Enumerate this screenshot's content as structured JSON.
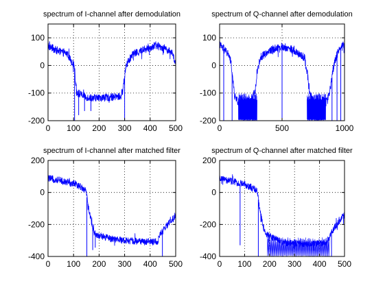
{
  "figure": {
    "background": "#ffffff",
    "line_color": "#0000ff",
    "grid_color": "#000000"
  },
  "chart_data": [
    {
      "type": "line",
      "title": "spectrum  of I-channel after  demodulation",
      "xlabel": "",
      "ylabel": "",
      "xlim": [
        0,
        500
      ],
      "ylim": [
        -200,
        150
      ],
      "xticks": [
        0,
        100,
        200,
        300,
        400,
        500
      ],
      "yticks": [
        -200,
        -100,
        0,
        100
      ],
      "grid": true,
      "series": [
        {
          "color": "#0000ff",
          "profile": [
            [
              0,
              70
            ],
            [
              40,
              52
            ],
            [
              75,
              42
            ],
            [
              95,
              10
            ],
            [
              103,
              0
            ],
            [
              108,
              -60
            ],
            [
              115,
              -100
            ],
            [
              150,
              -115
            ],
            [
              200,
              -118
            ],
            [
              250,
              -115
            ],
            [
              285,
              -112
            ],
            [
              293,
              -90
            ],
            [
              300,
              -40
            ],
            [
              305,
              0
            ],
            [
              330,
              40
            ],
            [
              380,
              58
            ],
            [
              420,
              72
            ],
            [
              460,
              62
            ],
            [
              490,
              40
            ],
            [
              500,
              0
            ]
          ],
          "noise": 14,
          "spikes": [
            [
              104,
              -200
            ],
            [
              120,
              -180
            ],
            [
              143,
              -165
            ],
            [
              168,
              -165
            ],
            [
              300,
              -200
            ]
          ]
        }
      ]
    },
    {
      "type": "line",
      "title": "spectrum of Q-channel after demodulation",
      "xlabel": "",
      "ylabel": "",
      "xlim": [
        0,
        1000
      ],
      "ylim": [
        -200,
        150
      ],
      "xticks": [
        0,
        500,
        1000
      ],
      "yticks": [
        -200,
        -100,
        0,
        100
      ],
      "grid": true,
      "series": [
        {
          "color": "#0000ff",
          "profile": [
            [
              0,
              75
            ],
            [
              40,
              55
            ],
            [
              75,
              38
            ],
            [
              95,
              0
            ],
            [
              105,
              -50
            ],
            [
              120,
              -110
            ],
            [
              150,
              -135
            ],
            [
              200,
              -160
            ],
            [
              250,
              -135
            ],
            [
              285,
              -95
            ],
            [
              300,
              -20
            ],
            [
              330,
              30
            ],
            [
              370,
              45
            ],
            [
              430,
              60
            ],
            [
              500,
              68
            ],
            [
              570,
              60
            ],
            [
              620,
              45
            ],
            [
              680,
              28
            ],
            [
              700,
              -20
            ],
            [
              720,
              -95
            ],
            [
              750,
              -140
            ],
            [
              800,
              -160
            ],
            [
              850,
              -140
            ],
            [
              880,
              -100
            ],
            [
              905,
              -30
            ],
            [
              920,
              10
            ],
            [
              950,
              55
            ],
            [
              1000,
              78
            ]
          ],
          "noise": 15,
          "dense": [
            [
              150,
              300,
              -200,
              -100
            ],
            [
              700,
              850,
              -200,
              -100
            ]
          ],
          "spikes": [
            [
              33,
              -200
            ],
            [
              100,
              -200
            ],
            [
              500,
              -200
            ],
            [
              900,
              -200
            ],
            [
              940,
              -200
            ],
            [
              970,
              -200
            ]
          ]
        }
      ]
    },
    {
      "type": "line",
      "title": "spectrum  of I-channel  after  matched filter",
      "xlabel": "",
      "ylabel": "",
      "xlim": [
        0,
        500
      ],
      "ylim": [
        -400,
        200
      ],
      "xticks": [
        0,
        100,
        200,
        300,
        400,
        500
      ],
      "yticks": [
        -400,
        -200,
        0,
        200
      ],
      "grid": true,
      "series": [
        {
          "color": "#0000ff",
          "profile": [
            [
              0,
              88
            ],
            [
              50,
              75
            ],
            [
              100,
              55
            ],
            [
              130,
              35
            ],
            [
              148,
              10
            ],
            [
              155,
              -60
            ],
            [
              165,
              -150
            ],
            [
              180,
              -250
            ],
            [
              195,
              -270
            ],
            [
              250,
              -290
            ],
            [
              300,
              -300
            ],
            [
              350,
              -305
            ],
            [
              400,
              -310
            ],
            [
              430,
              -305
            ],
            [
              440,
              -260
            ],
            [
              460,
              -220
            ],
            [
              500,
              -140
            ]
          ],
          "noise": 22,
          "spikes": [
            [
              152,
              -400
            ],
            [
              175,
              -360
            ],
            [
              185,
              -345
            ],
            [
              448,
              -400
            ]
          ]
        }
      ]
    },
    {
      "type": "line",
      "title": "spectrum of  Q-channel after matched filter",
      "xlabel": "",
      "ylabel": "",
      "xlim": [
        0,
        500
      ],
      "ylim": [
        -400,
        200
      ],
      "xticks": [
        0,
        100,
        200,
        300,
        400,
        500
      ],
      "yticks": [
        -400,
        -200,
        0,
        200
      ],
      "grid": true,
      "series": [
        {
          "color": "#0000ff",
          "profile": [
            [
              0,
              82
            ],
            [
              50,
              70
            ],
            [
              100,
              50
            ],
            [
              130,
              30
            ],
            [
              150,
              10
            ],
            [
              160,
              -100
            ],
            [
              175,
              -220
            ],
            [
              190,
              -265
            ],
            [
              250,
              -310
            ],
            [
              300,
              -320
            ],
            [
              350,
              -325
            ],
            [
              400,
              -320
            ],
            [
              430,
              -310
            ],
            [
              440,
              -270
            ],
            [
              460,
              -220
            ],
            [
              500,
              -140
            ]
          ],
          "noise": 22,
          "dense": [
            [
              190,
              440,
              -400,
              -280
            ]
          ],
          "spikes": [
            [
              82,
              -330
            ],
            [
              155,
              -400
            ],
            [
              448,
              -400
            ]
          ]
        }
      ]
    }
  ]
}
